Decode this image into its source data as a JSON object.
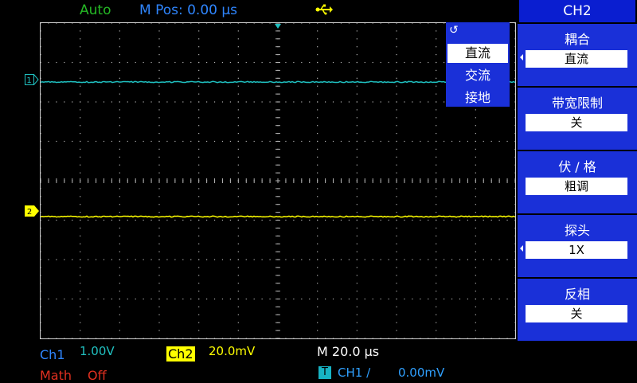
{
  "status": {
    "trigger_mode": "Auto",
    "m_pos": "M Pos: 0.00 µs",
    "usb_icon": "usb-icon"
  },
  "screen": {
    "ch1_marker": "1",
    "ch2_marker": "2",
    "colors": {
      "ch1": "#20c0c0",
      "ch2": "#ffff00",
      "grid": "#b0b0b0"
    }
  },
  "popup": {
    "icon": "↺",
    "options": [
      "直流",
      "交流",
      "接地"
    ],
    "selected_index": 0
  },
  "menu": {
    "title": "CH2",
    "items": [
      {
        "label": "耦合",
        "value": "直流"
      },
      {
        "label": "带宽限制",
        "value": "关"
      },
      {
        "label": "伏 / 格",
        "value": "粗调"
      },
      {
        "label": "探头",
        "value": "1X"
      },
      {
        "label": "反相",
        "value": "关"
      }
    ]
  },
  "bottom": {
    "ch1_label": "Ch1",
    "ch1_value": "1.00V",
    "ch2_label": "Ch2",
    "ch2_value": "20.0mV",
    "math_label": "Math",
    "math_value": "Off",
    "timebase": "M 20.0 µs",
    "trigger_badge": "T",
    "trigger_source": "CH1 ∕",
    "trigger_level": "0.00mV"
  }
}
